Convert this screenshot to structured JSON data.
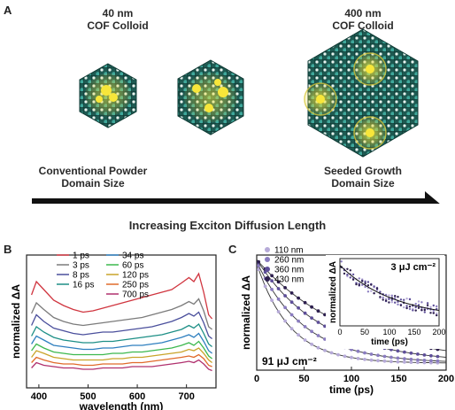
{
  "panel_a": {
    "letter": "A",
    "small_colloid_size": "40 nm",
    "small_colloid_name": "COF Colloid",
    "large_colloid_size": "400 nm",
    "large_colloid_name": "COF Colloid",
    "left_caption_line1": "Conventional Powder",
    "left_caption_line2": "Domain Size",
    "right_caption_line1": "Seeded Growth",
    "right_caption_line2": "Domain Size",
    "arrow_label": "Increasing Exciton Diffusion Length",
    "colors": {
      "lattice": "#1e5a52",
      "node": "#3fa89b",
      "exciton": "#f2e23a"
    }
  },
  "chart_data": [
    {
      "panel": "B",
      "type": "line",
      "ylabel": "normalized ΔA",
      "xlabel": "wavelength (nm)",
      "xlim": [
        375,
        760
      ],
      "xticks": [
        400,
        500,
        600,
        700
      ],
      "ytick_labels": false,
      "legend_placement": "top",
      "x": [
        385,
        395,
        410,
        430,
        450,
        470,
        490,
        510,
        530,
        550,
        570,
        590,
        610,
        630,
        650,
        670,
        690,
        705,
        715,
        725,
        735,
        745,
        752
      ],
      "series": [
        {
          "name": "1 ps",
          "color": "#d0353f",
          "values": [
            0.7,
            0.8,
            0.74,
            0.66,
            0.62,
            0.59,
            0.57,
            0.58,
            0.6,
            0.62,
            0.64,
            0.66,
            0.68,
            0.7,
            0.72,
            0.74,
            0.79,
            0.83,
            0.8,
            0.86,
            0.72,
            0.55,
            0.52
          ]
        },
        {
          "name": "3 ps",
          "color": "#7b7b7b",
          "values": [
            0.56,
            0.64,
            0.59,
            0.53,
            0.5,
            0.48,
            0.47,
            0.48,
            0.49,
            0.5,
            0.51,
            0.52,
            0.53,
            0.55,
            0.57,
            0.59,
            0.62,
            0.65,
            0.63,
            0.67,
            0.58,
            0.46,
            0.44
          ]
        },
        {
          "name": "8 ps",
          "color": "#4a4f9c",
          "values": [
            0.47,
            0.55,
            0.5,
            0.45,
            0.43,
            0.41,
            0.4,
            0.41,
            0.42,
            0.42,
            0.43,
            0.44,
            0.45,
            0.46,
            0.48,
            0.5,
            0.53,
            0.56,
            0.54,
            0.57,
            0.49,
            0.39,
            0.37
          ]
        },
        {
          "name": "16 ps",
          "color": "#1d8f86",
          "values": [
            0.39,
            0.46,
            0.42,
            0.38,
            0.36,
            0.35,
            0.34,
            0.34,
            0.35,
            0.35,
            0.36,
            0.37,
            0.38,
            0.39,
            0.4,
            0.42,
            0.44,
            0.47,
            0.45,
            0.48,
            0.41,
            0.33,
            0.31
          ]
        },
        {
          "name": "34 ps",
          "color": "#2e7fbf",
          "values": [
            0.33,
            0.39,
            0.36,
            0.32,
            0.31,
            0.3,
            0.29,
            0.29,
            0.3,
            0.3,
            0.31,
            0.32,
            0.32,
            0.33,
            0.34,
            0.36,
            0.38,
            0.4,
            0.38,
            0.41,
            0.35,
            0.28,
            0.26
          ]
        },
        {
          "name": "60 ps",
          "color": "#3cb84e",
          "values": [
            0.28,
            0.33,
            0.3,
            0.27,
            0.26,
            0.25,
            0.25,
            0.25,
            0.25,
            0.26,
            0.26,
            0.27,
            0.27,
            0.28,
            0.29,
            0.3,
            0.32,
            0.34,
            0.32,
            0.35,
            0.3,
            0.24,
            0.22
          ]
        },
        {
          "name": "120 ps",
          "color": "#c9a42a",
          "values": [
            0.23,
            0.28,
            0.26,
            0.23,
            0.22,
            0.21,
            0.21,
            0.21,
            0.21,
            0.22,
            0.22,
            0.23,
            0.23,
            0.24,
            0.25,
            0.26,
            0.27,
            0.29,
            0.28,
            0.3,
            0.26,
            0.21,
            0.19
          ]
        },
        {
          "name": "250 ps",
          "color": "#e06a2a",
          "values": [
            0.19,
            0.23,
            0.21,
            0.19,
            0.18,
            0.18,
            0.17,
            0.17,
            0.18,
            0.18,
            0.18,
            0.19,
            0.19,
            0.2,
            0.21,
            0.22,
            0.23,
            0.24,
            0.23,
            0.25,
            0.22,
            0.17,
            0.16
          ]
        },
        {
          "name": "700 ps",
          "color": "#b0306e",
          "values": [
            0.15,
            0.19,
            0.17,
            0.16,
            0.15,
            0.15,
            0.14,
            0.14,
            0.15,
            0.15,
            0.15,
            0.16,
            0.16,
            0.16,
            0.17,
            0.18,
            0.19,
            0.2,
            0.19,
            0.21,
            0.18,
            0.14,
            0.13
          ]
        }
      ]
    },
    {
      "panel": "C",
      "type": "scatter",
      "ylabel": "normalized ΔA",
      "xlabel": "time (ps)",
      "xlim": [
        0,
        200
      ],
      "xticks": [
        0,
        50,
        100,
        150,
        200
      ],
      "annotation": "91 μJ cm⁻²",
      "legend_placement": "top-left",
      "series": [
        {
          "name": "110 nm",
          "color": "#b6aad8",
          "tau": 35,
          "amp": 0.96
        },
        {
          "name": "260 nm",
          "color": "#8a7cc0",
          "tau": 50,
          "amp": 0.98
        },
        {
          "name": "360 nm",
          "color": "#5e4f99",
          "tau": 70,
          "amp": 1.0
        },
        {
          "name": "430 nm",
          "color": "#2d1f4e",
          "tau": 95,
          "amp": 1.0
        }
      ],
      "inset": {
        "ylabel": "normalized ΔA",
        "xlabel": "time (ps)",
        "xlim": [
          0,
          200
        ],
        "xticks": [
          0,
          50,
          100,
          150,
          200
        ],
        "annotation": "3 μJ cm⁻²"
      }
    }
  ]
}
